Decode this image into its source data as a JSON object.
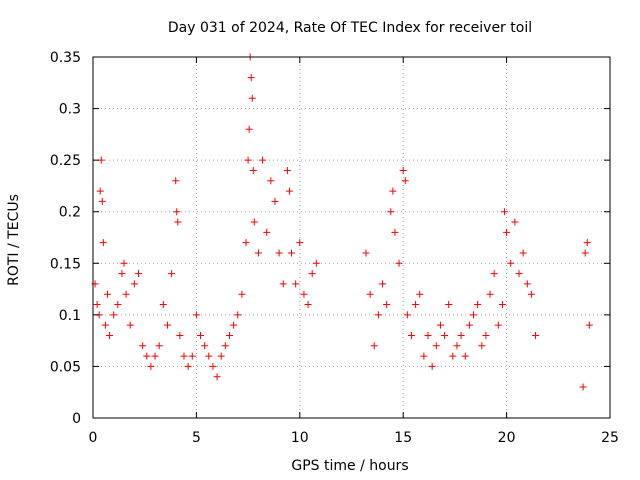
{
  "chart_data": {
    "type": "scatter",
    "title": "Day 031 of 2024, Rate Of TEC Index for receiver toil",
    "xlabel": "GPS time / hours",
    "ylabel": "ROTI / TECUs",
    "xlim": [
      0,
      25
    ],
    "ylim": [
      0,
      0.35
    ],
    "xticks": [
      0,
      5,
      10,
      15,
      20,
      25
    ],
    "xtick_labels": [
      "0",
      "5",
      "10",
      "15",
      "20",
      "25"
    ],
    "yticks": [
      0,
      0.05,
      0.1,
      0.15,
      0.2,
      0.25,
      0.3,
      0.35
    ],
    "ytick_labels": [
      "0",
      "0.05",
      "0.1",
      "0.15",
      "0.2",
      "0.25",
      "0.3",
      "0.35"
    ],
    "grid": true,
    "marker": "+",
    "color": "#ff0000",
    "series": [
      {
        "name": "ROTI",
        "x": [
          0.1,
          0.2,
          0.3,
          0.35,
          0.4,
          0.45,
          0.5,
          0.6,
          0.7,
          0.8,
          1.0,
          1.2,
          1.4,
          1.5,
          1.6,
          1.8,
          2.0,
          2.2,
          2.4,
          2.6,
          2.8,
          3.0,
          3.2,
          3.4,
          3.6,
          3.8,
          4.0,
          4.05,
          4.1,
          4.2,
          4.4,
          4.6,
          4.8,
          5.0,
          5.2,
          5.4,
          5.6,
          5.8,
          6.0,
          6.2,
          6.4,
          6.6,
          6.8,
          7.0,
          7.2,
          7.4,
          7.5,
          7.55,
          7.6,
          7.65,
          7.7,
          7.75,
          7.8,
          8.0,
          8.2,
          8.4,
          8.6,
          8.8,
          9.0,
          9.2,
          9.4,
          9.5,
          9.6,
          9.8,
          10.0,
          10.2,
          10.4,
          10.6,
          10.8,
          13.2,
          13.4,
          13.6,
          13.8,
          14.0,
          14.2,
          14.4,
          14.5,
          14.6,
          14.8,
          15.0,
          15.1,
          15.2,
          15.4,
          15.6,
          15.8,
          16.0,
          16.2,
          16.4,
          16.6,
          16.8,
          17.0,
          17.2,
          17.4,
          17.6,
          17.8,
          18.0,
          18.2,
          18.4,
          18.6,
          18.8,
          19.0,
          19.2,
          19.4,
          19.6,
          19.8,
          19.9,
          20.0,
          20.2,
          20.4,
          20.6,
          20.8,
          21.0,
          21.2,
          21.4,
          23.7,
          23.8,
          23.9,
          24.0
        ],
        "y": [
          0.13,
          0.11,
          0.1,
          0.22,
          0.25,
          0.21,
          0.17,
          0.09,
          0.12,
          0.08,
          0.1,
          0.11,
          0.14,
          0.15,
          0.12,
          0.09,
          0.13,
          0.14,
          0.07,
          0.06,
          0.05,
          0.06,
          0.07,
          0.11,
          0.09,
          0.14,
          0.23,
          0.2,
          0.19,
          0.08,
          0.06,
          0.05,
          0.06,
          0.1,
          0.08,
          0.07,
          0.06,
          0.05,
          0.04,
          0.06,
          0.07,
          0.08,
          0.09,
          0.1,
          0.12,
          0.17,
          0.25,
          0.28,
          0.35,
          0.33,
          0.31,
          0.24,
          0.19,
          0.16,
          0.25,
          0.18,
          0.23,
          0.21,
          0.16,
          0.13,
          0.24,
          0.22,
          0.16,
          0.13,
          0.17,
          0.12,
          0.11,
          0.14,
          0.15,
          0.16,
          0.12,
          0.07,
          0.1,
          0.13,
          0.11,
          0.2,
          0.22,
          0.18,
          0.15,
          0.24,
          0.23,
          0.1,
          0.08,
          0.11,
          0.12,
          0.06,
          0.08,
          0.05,
          0.07,
          0.09,
          0.08,
          0.11,
          0.06,
          0.07,
          0.08,
          0.06,
          0.09,
          0.1,
          0.11,
          0.07,
          0.08,
          0.12,
          0.14,
          0.09,
          0.11,
          0.2,
          0.18,
          0.15,
          0.19,
          0.14,
          0.16,
          0.13,
          0.12,
          0.08,
          0.03,
          0.16,
          0.17,
          0.09
        ]
      }
    ]
  }
}
